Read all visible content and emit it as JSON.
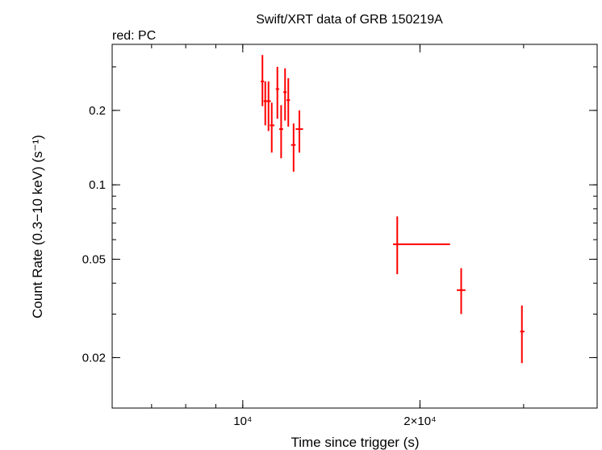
{
  "chart_data": {
    "type": "scatter",
    "title": "Swift/XRT data of GRB 150219A",
    "subtitle": "red: PC",
    "xlabel": "Time since trigger (s)",
    "ylabel": "Count Rate (0.3−10 keV) (s⁻¹)",
    "xscale": "log",
    "yscale": "log",
    "xlim": [
      6000,
      40000
    ],
    "ylim": [
      0.0125,
      0.37
    ],
    "x_ticks": [
      {
        "value": 10000,
        "label": "10⁴"
      },
      {
        "value": 20000,
        "label": "2×10⁴"
      }
    ],
    "y_ticks": [
      {
        "value": 0.2,
        "label": "0.2"
      },
      {
        "value": 0.1,
        "label": "0.1"
      },
      {
        "value": 0.05,
        "label": "0.05"
      },
      {
        "value": 0.02,
        "label": "0.02"
      }
    ],
    "grid": false,
    "series": [
      {
        "color": "#ff0000",
        "points": [
          {
            "x": 10800,
            "x_lo": 10730,
            "x_hi": 10870,
            "y": 0.262,
            "y_lo": 0.208,
            "y_hi": 0.335
          },
          {
            "x": 10920,
            "x_lo": 10850,
            "x_hi": 11010,
            "y": 0.218,
            "y_lo": 0.174,
            "y_hi": 0.262
          },
          {
            "x": 11060,
            "x_lo": 10980,
            "x_hi": 11160,
            "y": 0.218,
            "y_lo": 0.165,
            "y_hi": 0.262
          },
          {
            "x": 11200,
            "x_lo": 11120,
            "x_hi": 11320,
            "y": 0.174,
            "y_lo": 0.135,
            "y_hi": 0.215
          },
          {
            "x": 11450,
            "x_lo": 11380,
            "x_hi": 11530,
            "y": 0.244,
            "y_lo": 0.185,
            "y_hi": 0.3
          },
          {
            "x": 11620,
            "x_lo": 11530,
            "x_hi": 11710,
            "y": 0.168,
            "y_lo": 0.128,
            "y_hi": 0.21
          },
          {
            "x": 11800,
            "x_lo": 11720,
            "x_hi": 11870,
            "y": 0.237,
            "y_lo": 0.182,
            "y_hi": 0.296
          },
          {
            "x": 11950,
            "x_lo": 11870,
            "x_hi": 12030,
            "y": 0.22,
            "y_lo": 0.172,
            "y_hi": 0.27
          },
          {
            "x": 12200,
            "x_lo": 12080,
            "x_hi": 12300,
            "y": 0.145,
            "y_lo": 0.113,
            "y_hi": 0.177
          },
          {
            "x": 12480,
            "x_lo": 12300,
            "x_hi": 12660,
            "y": 0.168,
            "y_lo": 0.135,
            "y_hi": 0.2
          },
          {
            "x": 18300,
            "x_lo": 18000,
            "x_hi": 22500,
            "y": 0.0575,
            "y_lo": 0.0435,
            "y_hi": 0.0745
          },
          {
            "x": 23500,
            "x_lo": 23100,
            "x_hi": 23900,
            "y": 0.0375,
            "y_lo": 0.03,
            "y_hi": 0.046
          },
          {
            "x": 29800,
            "x_lo": 29600,
            "x_hi": 30100,
            "y": 0.0255,
            "y_lo": 0.019,
            "y_hi": 0.0325
          }
        ]
      }
    ]
  }
}
